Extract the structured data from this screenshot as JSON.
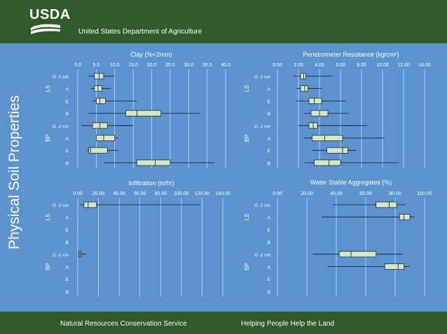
{
  "header": {
    "logo_text": "USDA",
    "agency": "United States Department of Agriculture"
  },
  "side_title": "Physical Soil Properties",
  "footer": {
    "left": "Natural Resources Conservation Service",
    "right": "Helping People Help the Land"
  },
  "colors": {
    "banner": "#2f5a2a",
    "background": "#5b93cf",
    "box_fill": "#d3e7c2",
    "box_stroke": "#1a1a1a"
  },
  "chart_data": [
    {
      "type": "box",
      "title": "Clay (%<2mm)",
      "xlim": [
        0,
        40
      ],
      "xticks": [
        "0.0",
        "5.0",
        "10.0",
        "15.0",
        "20.0",
        "25.0",
        "30.0",
        "35.0",
        "40.0"
      ],
      "groups": [
        "LS",
        "BP"
      ],
      "categories": [
        "O -2 cm",
        "A",
        "E",
        "B",
        "O -2 cm",
        "A",
        "E",
        "B"
      ],
      "boxes": [
        {
          "group": "LS",
          "horizon": "O -2 cm",
          "min": 3,
          "q1": 4.5,
          "median": 5.8,
          "q3": 7,
          "max": 10
        },
        {
          "group": "LS",
          "horizon": "A",
          "min": 3.5,
          "q1": 4.5,
          "median": 5.5,
          "q3": 6.5,
          "max": 9
        },
        {
          "group": "LS",
          "horizon": "E",
          "min": 4,
          "q1": 5,
          "median": 6,
          "q3": 7.5,
          "max": 16
        },
        {
          "group": "LS",
          "horizon": "B",
          "min": 3,
          "q1": 13,
          "median": 16,
          "q3": 22.5,
          "max": 33
        },
        {
          "group": "BP",
          "horizon": "O -2 cm",
          "min": 1,
          "q1": 4,
          "median": 6,
          "q3": 8,
          "max": 15
        },
        {
          "group": "BP",
          "horizon": "A",
          "min": 5,
          "q1": 5,
          "median": 7,
          "q3": 10,
          "max": 11
        },
        {
          "group": "BP",
          "horizon": "E",
          "min": 2.5,
          "q1": 3,
          "median": 3.5,
          "q3": 8,
          "max": 11
        },
        {
          "group": "BP",
          "horizon": "B",
          "min": 7,
          "q1": 16,
          "median": 21,
          "q3": 25,
          "max": 37
        }
      ]
    },
    {
      "type": "box",
      "title": "Penetrometer Resistance (kg/cm²)",
      "xlim": [
        0,
        14
      ],
      "xticks": [
        "0.00",
        "2.00",
        "4.00",
        "6.00",
        "8.00",
        "10.00",
        "12.00",
        "14.00"
      ],
      "groups": [
        "LS",
        "BP"
      ],
      "categories": [
        "O -2 cm",
        "A",
        "E",
        "B",
        "O -2 cm",
        "A",
        "E",
        "B"
      ],
      "boxes": [
        {
          "group": "LS",
          "horizon": "O -2 cm",
          "min": 1.5,
          "q1": 2.2,
          "median": 2.5,
          "q3": 2.7,
          "max": 5.2
        },
        {
          "group": "LS",
          "horizon": "A",
          "min": 1.8,
          "q1": 2.2,
          "median": 2.6,
          "q3": 2.9,
          "max": 4.2
        },
        {
          "group": "LS",
          "horizon": "E",
          "min": 1.8,
          "q1": 3,
          "median": 3.5,
          "q3": 4.2,
          "max": 6.5
        },
        {
          "group": "LS",
          "horizon": "B",
          "min": 2.5,
          "q1": 3.2,
          "median": 4,
          "q3": 4.8,
          "max": 6.8
        },
        {
          "group": "BP",
          "horizon": "O -2 cm",
          "min": 2,
          "q1": 3,
          "median": 3.4,
          "q3": 3.8,
          "max": 8.5
        },
        {
          "group": "BP",
          "horizon": "A",
          "min": 2.5,
          "q1": 3.3,
          "median": 4.5,
          "q3": 6.2,
          "max": 10.2
        },
        {
          "group": "BP",
          "horizon": "E",
          "min": 3.3,
          "q1": 4.7,
          "median": 6.2,
          "q3": 6.7,
          "max": 7.5
        },
        {
          "group": "BP",
          "horizon": "B",
          "min": 2.6,
          "q1": 3.5,
          "median": 4.9,
          "q3": 6,
          "max": 11.5
        }
      ]
    },
    {
      "type": "box",
      "title": "Infiltration (in/hr)",
      "xlim": [
        0,
        140
      ],
      "xticks": [
        "0.00",
        "20.00",
        "40.00",
        "60.00",
        "80.00",
        "100.00",
        "120.00",
        "140.00"
      ],
      "groups": [
        "LS",
        "BP"
      ],
      "categories": [
        "O -2 cm",
        "A",
        "E",
        "B",
        "O -2 cm",
        "A",
        "E",
        "B"
      ],
      "boxes": [
        {
          "group": "LS",
          "horizon": "O -2 cm",
          "min": 2,
          "q1": 6,
          "median": 10,
          "q3": 18,
          "max": 118
        },
        {
          "group": "BP",
          "horizon": "O -2 cm",
          "min": 0,
          "q1": 1,
          "median": 2,
          "q3": 3,
          "max": 8
        }
      ]
    },
    {
      "type": "box",
      "title": "Water Stable Aggregates (%)",
      "xlim": [
        0,
        100
      ],
      "xticks": [
        "0.00",
        "20.00",
        "40.00",
        "60.00",
        "80.00",
        "100.00"
      ],
      "groups": [
        "LS",
        "BP"
      ],
      "categories": [
        "O -2 cm",
        "A",
        "E",
        "B",
        "O -2 cm",
        "A",
        "E",
        "B"
      ],
      "boxes": [
        {
          "group": "LS",
          "horizon": "O -2 cm",
          "min": 38,
          "q1": 67,
          "median": 76,
          "q3": 81,
          "max": 87
        },
        {
          "group": "LS",
          "horizon": "A",
          "min": 30,
          "q1": 83,
          "median": 86,
          "q3": 90,
          "max": 93
        },
        {
          "group": "BP",
          "horizon": "O -2 cm",
          "min": 24,
          "q1": 42,
          "median": 50,
          "q3": 67,
          "max": 85
        },
        {
          "group": "BP",
          "horizon": "A",
          "min": 34,
          "q1": 73,
          "median": 82,
          "q3": 86,
          "max": 90
        }
      ]
    }
  ]
}
